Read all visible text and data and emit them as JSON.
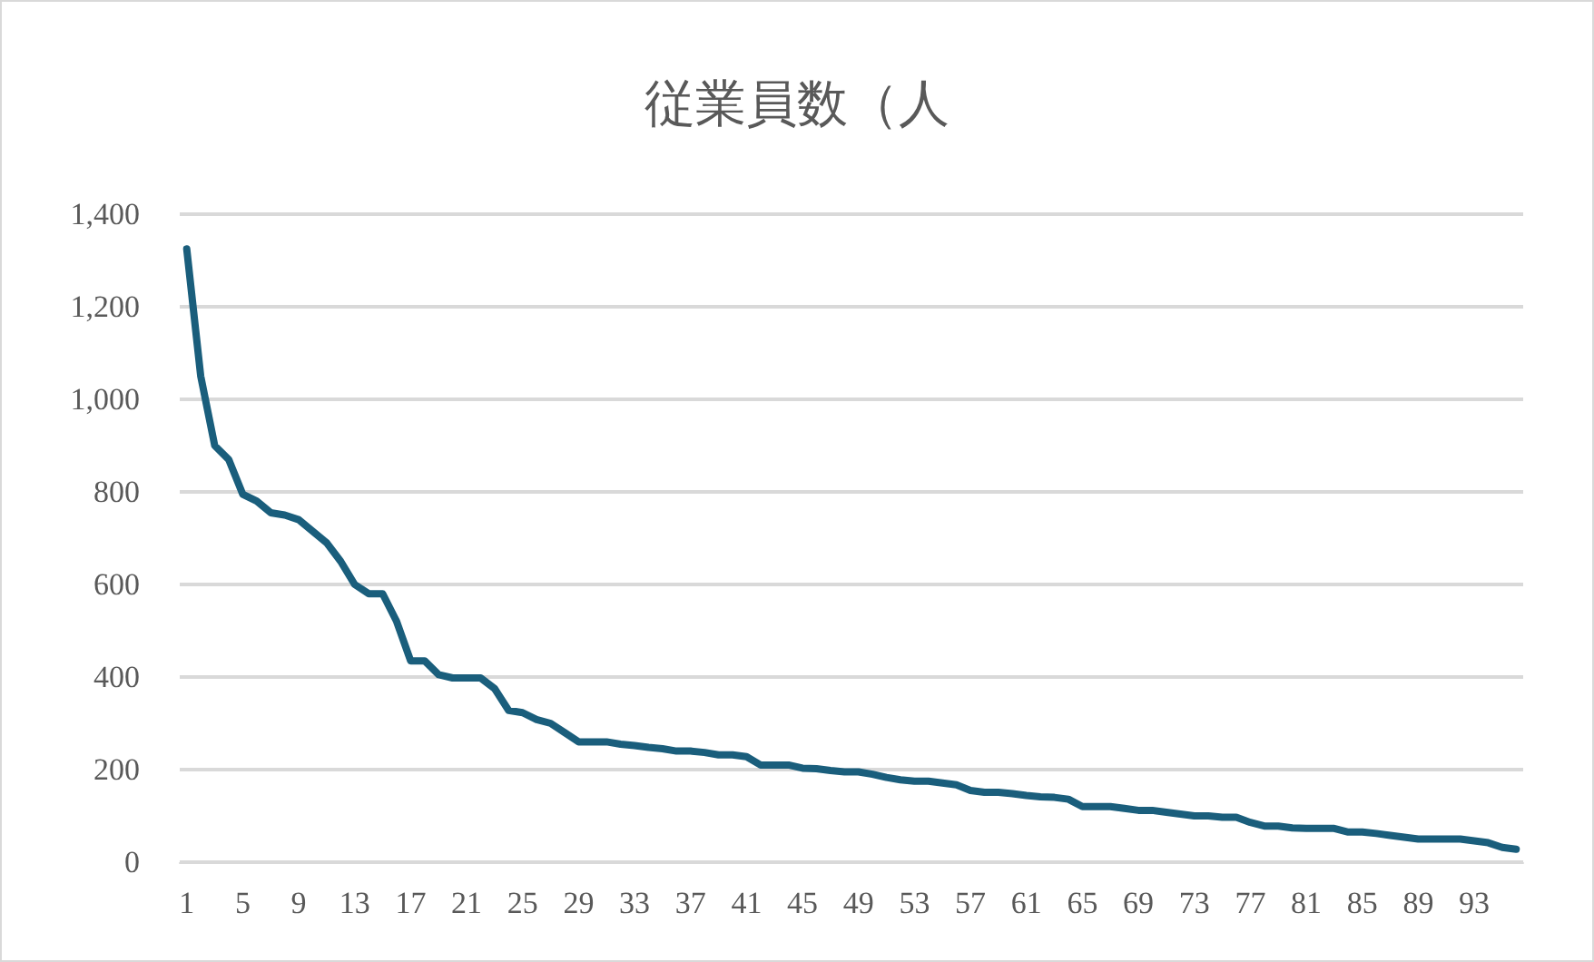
{
  "chart_data": {
    "type": "line",
    "title": "従業員数（人",
    "categories": [
      "1",
      null,
      null,
      null,
      "5",
      null,
      null,
      null,
      "9",
      null,
      null,
      null,
      "13",
      null,
      null,
      null,
      "17",
      null,
      null,
      null,
      "21",
      null,
      null,
      null,
      "25",
      null,
      null,
      null,
      "29",
      null,
      null,
      null,
      "33",
      null,
      null,
      null,
      "37",
      null,
      null,
      null,
      "41",
      null,
      null,
      null,
      "45",
      null,
      null,
      null,
      "49",
      null,
      null,
      null,
      "53",
      null,
      null,
      null,
      "57",
      null,
      null,
      null,
      "61",
      null,
      null,
      null,
      "65",
      null,
      null,
      null,
      "69",
      null,
      null,
      null,
      "73",
      null,
      null,
      null,
      "77",
      null,
      null,
      null,
      "81",
      null,
      null,
      null,
      "85",
      null,
      null,
      null,
      "89",
      null,
      null,
      null,
      "93",
      null,
      null,
      null
    ],
    "series": [
      {
        "color": "#1a5e7c",
        "values": [
          1325,
          1050,
          900,
          870,
          795,
          780,
          755,
          750,
          740,
          715,
          690,
          650,
          600,
          580,
          580,
          520,
          435,
          435,
          405,
          398,
          398,
          398,
          375,
          328,
          323,
          308,
          300,
          280,
          260,
          260,
          260,
          255,
          252,
          248,
          245,
          240,
          240,
          237,
          232,
          232,
          228,
          210,
          210,
          210,
          203,
          202,
          198,
          195,
          195,
          190,
          183,
          178,
          175,
          175,
          171,
          167,
          155,
          151,
          151,
          148,
          144,
          141,
          140,
          136,
          120,
          120,
          120,
          116,
          112,
          112,
          108,
          104,
          100,
          100,
          97,
          97,
          86,
          78,
          78,
          74,
          73,
          73,
          73,
          65,
          65,
          62,
          58,
          54,
          50,
          50,
          50,
          50,
          46,
          42,
          32,
          28
        ]
      }
    ],
    "ylim": [
      0,
      1400
    ],
    "yticks": [
      0,
      200,
      400,
      600,
      800,
      {
        "value": 1000,
        "label": "1,000"
      },
      {
        "value": 1200,
        "label": "1,200"
      },
      {
        "value": 1400,
        "label": "1,400"
      }
    ],
    "grid": "y",
    "marker": "none",
    "line_style": "solid"
  }
}
